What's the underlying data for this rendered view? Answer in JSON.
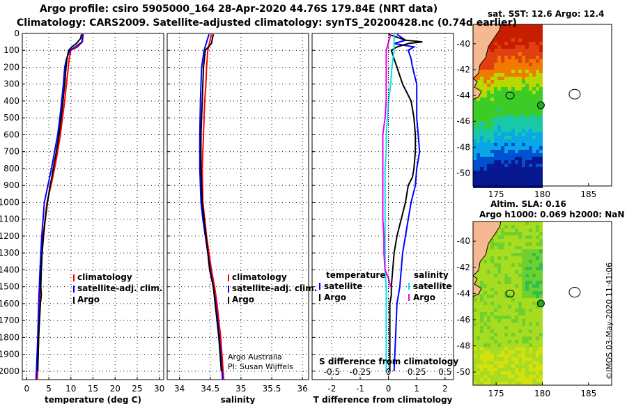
{
  "header": {
    "line1": "Argo profile: csiro 5905000_164 28-Apr-2020 44.76S 179.84E (NRT data)",
    "line2": "Climatology: CARS2009. Satellite-adjusted climatology: synTS_20200428.nc (0.74d earlier)"
  },
  "colors": {
    "climatology": "#ff0000",
    "satellite": "#0000ff",
    "argo": "#000000",
    "sal_satellite": "#00e5ee",
    "sal_argo": "#ee00ee",
    "land": "#f5b890"
  },
  "chart_data": [
    {
      "type": "line",
      "name": "temperature-profile",
      "xlabel": "temperature (deg C)",
      "ylabel": "",
      "xlim": [
        -1,
        31
      ],
      "ylim": [
        2050,
        0
      ],
      "y_reversed": true,
      "xticks": [
        0,
        5,
        10,
        15,
        20,
        25,
        30
      ],
      "yticks": [
        0,
        100,
        200,
        300,
        400,
        500,
        600,
        700,
        800,
        900,
        1000,
        1100,
        1200,
        1300,
        1400,
        1500,
        1600,
        1700,
        1800,
        1900,
        2000
      ],
      "legend": {
        "placement": "lower-right",
        "entries": [
          "climatology",
          "satellite-adj. clim.",
          "Argo"
        ]
      },
      "series": [
        {
          "name": "climatology",
          "color": "#ff0000",
          "depth": [
            5,
            50,
            80,
            100,
            150,
            200,
            300,
            400,
            500,
            600,
            700,
            800,
            900,
            1000,
            1200,
            1400,
            1600,
            1800,
            2000,
            2050
          ],
          "values": [
            12.8,
            12.6,
            11.5,
            10.0,
            9.6,
            9.4,
            9.0,
            8.6,
            8.1,
            7.6,
            7.0,
            6.3,
            5.5,
            4.6,
            3.7,
            3.2,
            2.9,
            2.7,
            2.5,
            2.4
          ]
        },
        {
          "name": "satellite-adj. clim.",
          "color": "#0000ff",
          "depth": [
            5,
            50,
            80,
            100,
            150,
            200,
            300,
            400,
            500,
            600,
            700,
            800,
            900,
            1000,
            1200,
            1400,
            1600,
            1800,
            2000,
            2050
          ],
          "values": [
            12.7,
            12.5,
            11.0,
            9.8,
            9.0,
            8.6,
            8.3,
            7.9,
            7.5,
            7.0,
            6.3,
            5.6,
            4.8,
            4.0,
            3.4,
            3.0,
            2.7,
            2.5,
            2.2,
            2.1
          ]
        },
        {
          "name": "Argo",
          "color": "#000000",
          "depth": [
            5,
            30,
            60,
            80,
            100,
            150,
            200,
            300,
            400,
            500,
            600,
            700,
            800,
            850,
            900,
            1000,
            1100,
            1200,
            1300,
            1400,
            1500,
            1550,
            1600,
            1700,
            1800,
            1900,
            2000
          ],
          "values": [
            12.4,
            12.2,
            11.2,
            10.2,
            9.5,
            9.1,
            8.9,
            8.6,
            8.2,
            7.8,
            7.3,
            6.7,
            6.0,
            5.7,
            5.3,
            4.7,
            4.2,
            3.8,
            3.5,
            3.3,
            3.2,
            3.3,
            3.1,
            2.9,
            2.7,
            2.6,
            2.5
          ]
        }
      ]
    },
    {
      "type": "line",
      "name": "salinity-profile",
      "xlabel": "salinity",
      "xlim": [
        33.8,
        36.1
      ],
      "ylim": [
        2050,
        0
      ],
      "y_reversed": true,
      "xticks": [
        34,
        34.5,
        35,
        35.5,
        36
      ],
      "legend": {
        "placement": "lower-right",
        "entries": [
          "climatology",
          "satellite-adj. clim.",
          "Argo"
        ]
      },
      "annotation": [
        "Argo Australia",
        "PI: Susan Wijffels"
      ],
      "series": [
        {
          "name": "climatology",
          "color": "#ff0000",
          "depth": [
            5,
            100,
            200,
            300,
            400,
            600,
            800,
            1000,
            1100,
            1200,
            1300,
            1400,
            1500,
            1600,
            1700,
            1800,
            1900,
            2000,
            2050
          ],
          "values": [
            34.52,
            34.46,
            34.44,
            34.43,
            34.41,
            34.39,
            34.37,
            34.38,
            34.41,
            34.44,
            34.48,
            34.52,
            34.57,
            34.61,
            34.64,
            34.67,
            34.69,
            34.71,
            34.72
          ]
        },
        {
          "name": "satellite-adj. clim.",
          "color": "#0000ff",
          "depth": [
            5,
            100,
            200,
            300,
            400,
            600,
            800,
            1000,
            1100,
            1200,
            1300,
            1400,
            1500,
            1600,
            1700,
            1800,
            1900,
            2000,
            2050
          ],
          "values": [
            34.48,
            34.4,
            34.36,
            34.35,
            34.34,
            34.33,
            34.33,
            34.35,
            34.38,
            34.42,
            34.46,
            34.5,
            34.55,
            34.59,
            34.62,
            34.65,
            34.67,
            34.69,
            34.7
          ]
        },
        {
          "name": "Argo",
          "color": "#000000",
          "depth": [
            5,
            60,
            100,
            200,
            300,
            400,
            500,
            600,
            700,
            800,
            900,
            1000,
            1100,
            1200,
            1300,
            1400,
            1450,
            1500,
            1600,
            1700,
            1800,
            1900,
            2000
          ],
          "values": [
            34.55,
            34.52,
            34.42,
            34.39,
            34.38,
            34.37,
            34.36,
            34.35,
            34.35,
            34.35,
            34.36,
            34.37,
            34.4,
            34.43,
            34.46,
            34.49,
            34.52,
            34.55,
            34.58,
            34.61,
            34.64,
            34.66,
            34.68
          ]
        }
      ]
    },
    {
      "type": "line",
      "name": "difference-profile",
      "xlabel": "T difference from climatology",
      "xlim": [
        -2.7,
        2.3
      ],
      "ylim": [
        2050,
        0
      ],
      "y_reversed": true,
      "xticks": [
        -2,
        -1,
        0,
        1,
        2
      ],
      "x2label": "S difference from climatology",
      "x2ticks": [
        -0.5,
        -0.25,
        0,
        0.25,
        0.5
      ],
      "x2lim": [
        -0.675,
        0.575
      ],
      "legend": {
        "placement": "lower-right",
        "temperature": [
          "satellite",
          "Argo"
        ],
        "salinity": [
          "satellite",
          "Argo"
        ]
      },
      "series": [
        {
          "name": "T satellite",
          "units": "T",
          "color": "#0000ff",
          "depth": [
            5,
            40,
            60,
            80,
            100,
            150,
            200,
            300,
            400,
            500,
            600,
            700,
            800,
            900,
            1000,
            1100,
            1200,
            1300,
            1400,
            1500,
            1600,
            1800,
            2000
          ],
          "values": [
            0.3,
            0.6,
            0.2,
            0.9,
            0.7,
            0.8,
            0.85,
            1.0,
            1.0,
            1.0,
            1.05,
            1.1,
            1.0,
            0.95,
            0.8,
            0.7,
            0.6,
            0.5,
            0.45,
            0.4,
            0.3,
            0.25,
            0.2
          ]
        },
        {
          "name": "T Argo",
          "units": "T",
          "color": "#000000",
          "depth": [
            5,
            40,
            50,
            60,
            80,
            100,
            150,
            200,
            300,
            400,
            500,
            600,
            700,
            800,
            850,
            900,
            1000,
            1100,
            1200,
            1300,
            1400,
            1500,
            1550,
            1600,
            1700,
            1800,
            1900,
            2000
          ],
          "values": [
            0.0,
            0.6,
            1.2,
            0.7,
            0.3,
            0.1,
            0.2,
            0.3,
            0.5,
            0.8,
            0.9,
            0.95,
            0.95,
            0.9,
            0.85,
            0.7,
            0.6,
            0.45,
            0.3,
            0.2,
            0.15,
            0.1,
            0.1,
            0.05,
            0.05,
            0.05,
            0.05,
            0.05
          ]
        },
        {
          "name": "S satellite",
          "units": "S",
          "color": "#00e5ee",
          "depth": [
            5,
            100,
            200,
            300,
            400,
            500,
            600,
            700,
            800,
            900,
            1000,
            1100,
            1200,
            1300,
            1400,
            1500,
            1600,
            1800,
            2000
          ],
          "values": [
            0.05,
            0.05,
            0.03,
            0.02,
            0.0,
            -0.01,
            -0.02,
            -0.02,
            -0.03,
            -0.03,
            -0.03,
            -0.03,
            -0.03,
            -0.03,
            -0.03,
            -0.02,
            -0.02,
            -0.02,
            -0.02
          ]
        },
        {
          "name": "S Argo",
          "units": "S",
          "color": "#ee00ee",
          "depth": [
            5,
            100,
            200,
            300,
            400,
            500,
            600,
            700,
            800,
            900,
            1000,
            1100,
            1200,
            1300,
            1400,
            1450,
            1500
          ],
          "values": [
            0.02,
            -0.02,
            -0.02,
            -0.02,
            -0.02,
            -0.03,
            -0.05,
            -0.05,
            -0.05,
            -0.05,
            -0.05,
            -0.05,
            -0.04,
            -0.04,
            -0.03,
            0.0,
            0.02
          ]
        }
      ]
    },
    {
      "type": "heatmap",
      "name": "sst-map",
      "title": "sat. SST: 12.6 Argo: 12.4",
      "xticks": [
        175,
        180,
        185
      ],
      "yticks": [
        -40,
        -42,
        -44,
        -46,
        -48,
        -50
      ],
      "xlim": [
        172.5,
        187.5
      ],
      "ylim": [
        -51,
        -38.5
      ],
      "argo_position": [
        179.84,
        -44.76
      ]
    },
    {
      "type": "heatmap",
      "name": "sla-map",
      "title": [
        "Altim. SLA: 0.16",
        "Argo h1000: 0.069 h2000: NaN"
      ],
      "xticks": [
        175,
        180,
        185
      ],
      "yticks": [
        -40,
        -42,
        -44,
        -46,
        -48,
        -50
      ],
      "xlim": [
        172.5,
        187.5
      ],
      "ylim": [
        -51,
        -38.5
      ],
      "argo_position": [
        179.84,
        -44.76
      ]
    }
  ],
  "legend_labels": {
    "climatology": "climatology",
    "satellite_adj": "satellite-adj. clim.",
    "argo": "Argo",
    "temperature": "temperature",
    "salinity": "salinity",
    "satellite": "satellite"
  },
  "footer": "©IMOS 03-May-2020 11:41:06"
}
